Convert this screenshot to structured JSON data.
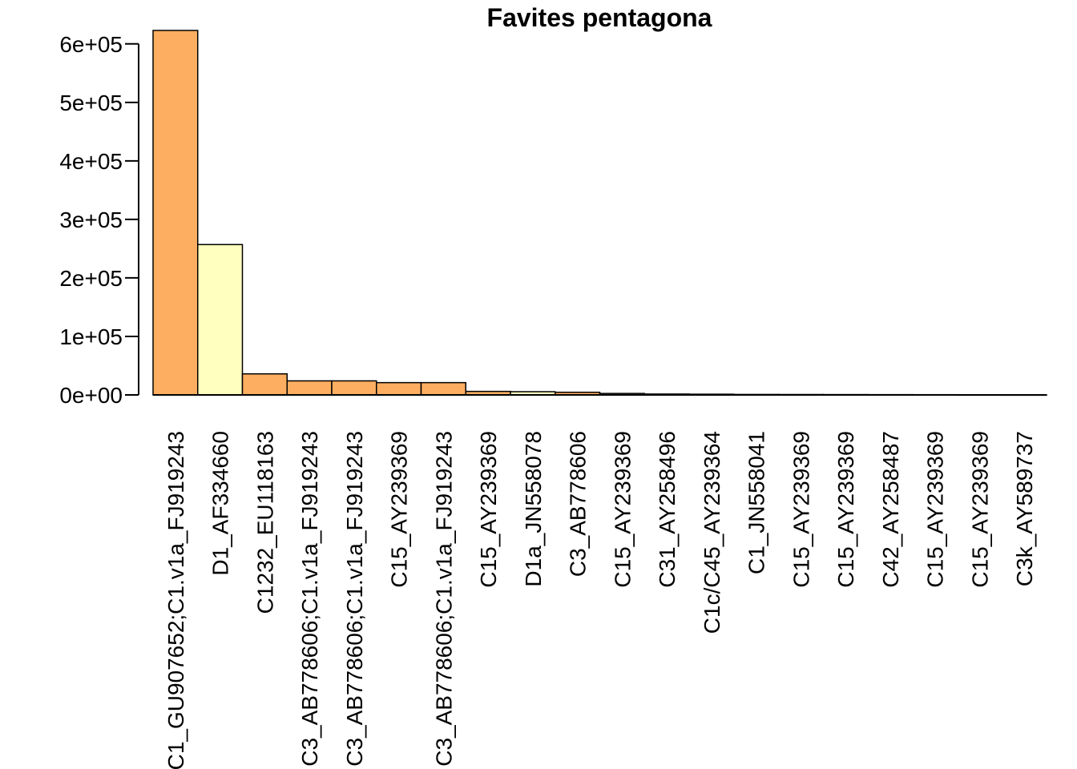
{
  "chart_data": {
    "type": "bar",
    "title": "Favites pentagona",
    "xlabel": "",
    "ylabel": "",
    "ylim": [
      0,
      640000
    ],
    "yticks": [
      0,
      100000,
      200000,
      300000,
      400000,
      500000,
      600000
    ],
    "ytick_labels": [
      "0e+00",
      "1e+05",
      "2e+05",
      "3e+05",
      "4e+05",
      "5e+05",
      "6e+05"
    ],
    "categories": [
      "C1_GU907652;C1.v1a_FJ919243",
      "D1_AF334660",
      "C1232_EU118163",
      "C3_AB778606;C1.v1a_FJ919243",
      "C3_AB778606;C1.v1a_FJ919243",
      "C15_AY239369",
      "C3_AB778606;C1.v1a_FJ919243",
      "C15_AY239369",
      "D1a_JN558078",
      "C3_AB778606",
      "C15_AY239369",
      "C31_AY258496",
      "C1c/C45_AY239364",
      "C1_JN558041",
      "C15_AY239369",
      "C15_AY239369",
      "C42_AY258487",
      "C15_AY239369",
      "C15_AY239369",
      "C3k_AY589737"
    ],
    "values": [
      623000,
      257000,
      36000,
      24000,
      24000,
      21000,
      21000,
      6000,
      5500,
      4500,
      2500,
      1500,
      1200,
      800,
      700,
      600,
      500,
      400,
      200,
      150
    ],
    "colors": [
      "#FDAE61",
      "#FFFFBF",
      "#FDAE61",
      "#FDAE61",
      "#FDAE61",
      "#FDAE61",
      "#FDAE61",
      "#FDAE61",
      "#FFFFBF",
      "#FDAE61",
      "#FDAE61",
      "#FDAE61",
      "#FDAE61",
      "#FDAE61",
      "#FDAE61",
      "#FDAE61",
      "#FDAE61",
      "#FDAE61",
      "#FDAE61",
      "#FDAE61"
    ],
    "grid": false,
    "legend": "none"
  }
}
